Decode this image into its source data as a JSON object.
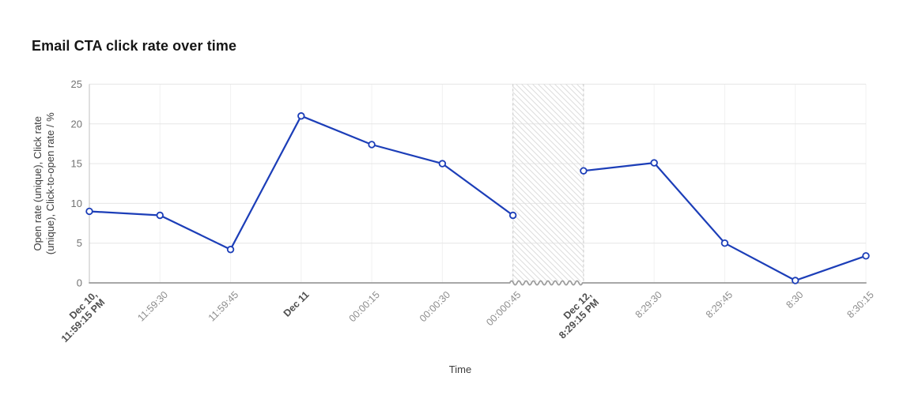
{
  "title": "Email CTA click rate over time",
  "chart_data": {
    "type": "line",
    "title": "Email CTA click rate over time",
    "xlabel": "Time",
    "ylabel": "Open rate (unique), Click rate (unique), Click-to-open rate / %",
    "ylabel_lines": [
      "Open rate (unique), Click rate",
      "(unique), Click-to-open rate / %"
    ],
    "ylim": [
      0,
      25
    ],
    "yticks": [
      0,
      5,
      10,
      15,
      20,
      25
    ],
    "grid": true,
    "legend_position": "none",
    "categories": [
      "Dec 10,\n11:59:15 PM",
      "11:59:30",
      "11:59:45",
      "Dec 11",
      "00:00:15",
      "00:00:30",
      "00:000:45",
      "Dec 12,\n8:29:15 PM",
      "8:29:30",
      "8:29:45",
      "8:30",
      "8:30:15"
    ],
    "emphasized_tick_indexes": [
      0,
      3,
      7
    ],
    "series": [
      {
        "name": "Email CTA click rate",
        "values": [
          9,
          8.5,
          4.2,
          21,
          17.4,
          15,
          8.5,
          14.1,
          15.1,
          5,
          0.3,
          3.4
        ],
        "color": "#1c3eb8"
      }
    ],
    "axis_break": {
      "between_indexes": [
        6,
        7
      ],
      "style": "hatched-region-with-wavy-axis"
    },
    "marker": "open-circle",
    "colors": {
      "line": "#1c3eb8",
      "marker_fill": "#ffffff",
      "hatch_line": "#dddddd",
      "break_border": "#c9c9c9",
      "axis": "#9c9c9c",
      "y_axis_line": "#c0c0c0",
      "grid_h": "#e6e6e6",
      "grid_v": "#f1f1f1"
    }
  }
}
